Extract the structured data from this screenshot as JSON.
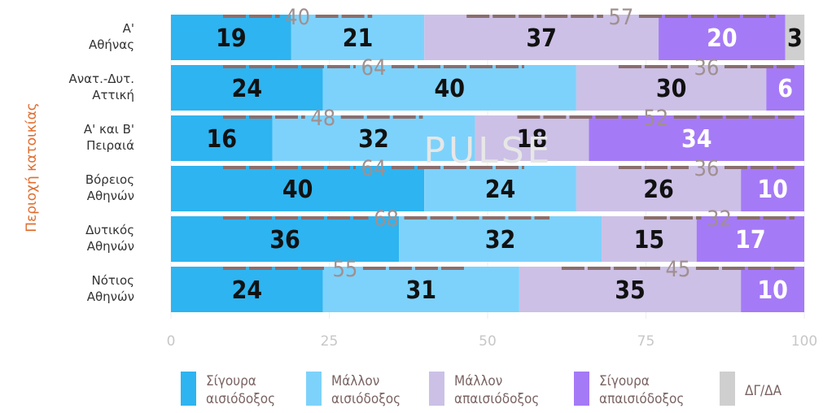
{
  "chart_data": {
    "type": "bar",
    "orientation": "horizontal",
    "stacked": true,
    "ylabel": "Περιοχή κατοικίας",
    "xlim": [
      0,
      100
    ],
    "xticks": [
      0,
      25,
      50,
      75,
      100
    ],
    "categories": [
      [
        "Α'",
        "Αθήνας"
      ],
      [
        "Ανατ.-Δυτ.",
        "Αττική"
      ],
      [
        "Α' και Β'",
        "Πειραιά"
      ],
      [
        "Βόρειος",
        "Αθηνών"
      ],
      [
        "Δυτικός",
        "Αθηνών"
      ],
      [
        "Νότιος",
        "Αθηνών"
      ]
    ],
    "series": [
      {
        "name": [
          "Σίγουρα",
          "αισιόδοξος"
        ],
        "color": "#2eb4f0",
        "label_color": "#111111",
        "values": [
          19,
          24,
          16,
          40,
          36,
          24
        ]
      },
      {
        "name": [
          "Μάλλον",
          "αισιόδοξος"
        ],
        "color": "#7dd2fb",
        "label_color": "#111111",
        "values": [
          21,
          40,
          32,
          24,
          32,
          31
        ]
      },
      {
        "name": [
          "Μάλλον",
          "απαισιόδοξος"
        ],
        "color": "#ccc0e6",
        "label_color": "#111111",
        "values": [
          37,
          30,
          18,
          26,
          15,
          35
        ]
      },
      {
        "name": [
          "Σίγουρα",
          "απαισιόδοξος"
        ],
        "color": "#a57af6",
        "label_color": "#ffffff",
        "values": [
          20,
          6,
          34,
          10,
          17,
          10
        ]
      },
      {
        "name": [
          "ΔΓ/ΔΑ"
        ],
        "color": "#cfcfcf",
        "label_color": "#111111",
        "values": [
          3,
          0,
          0,
          0,
          0,
          0
        ]
      }
    ],
    "totals": {
      "optimistic": [
        40,
        64,
        48,
        64,
        68,
        55
      ],
      "pessimistic": [
        57,
        36,
        52,
        36,
        32,
        45
      ]
    },
    "watermark": "PULSE"
  }
}
